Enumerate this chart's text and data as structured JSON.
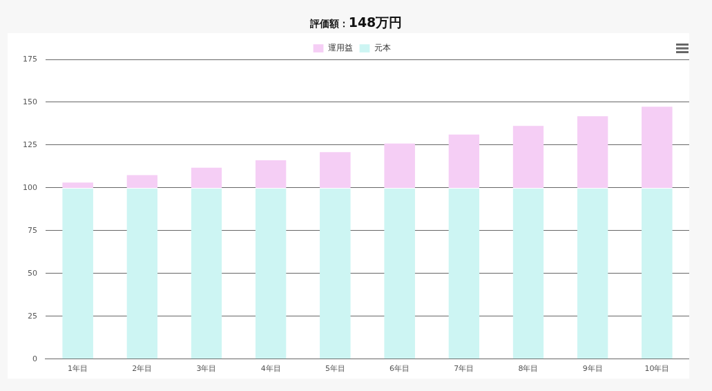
{
  "chart_data": {
    "type": "bar",
    "title": "評価額：",
    "subtitle": "148万円",
    "categories": [
      "1年目",
      "2年目",
      "3年目",
      "4年目",
      "5年目",
      "6年目",
      "7年目",
      "8年目",
      "9年目",
      "10年目"
    ],
    "stacked": true,
    "series": [
      {
        "name": "元本",
        "color": "#cdf5f3",
        "values": [
          100,
          100,
          100,
          100,
          100,
          100,
          100,
          100,
          100,
          100
        ]
      },
      {
        "name": "運用益",
        "color": "#f5cef5",
        "values": [
          3.5,
          7.8,
          12.2,
          16.5,
          21.2,
          26.3,
          31.5,
          36.6,
          42.2,
          47.8
        ]
      }
    ],
    "ylim": [
      0,
      175
    ],
    "yticks": [
      0,
      25,
      50,
      75,
      100,
      125,
      150,
      175
    ],
    "grid": "y",
    "legend": "top"
  }
}
